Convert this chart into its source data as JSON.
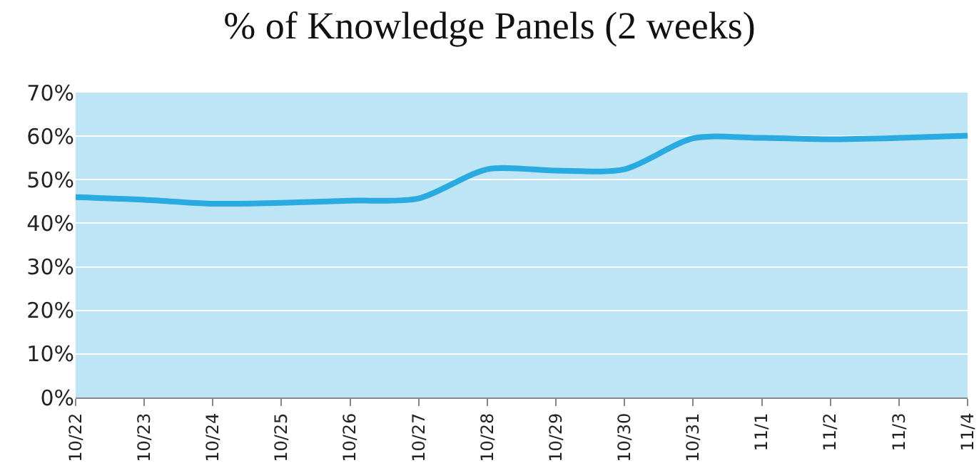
{
  "chart_data": {
    "type": "line",
    "title": "% of Knowledge Panels (2 weeks)",
    "categories": [
      "10/22",
      "10/23",
      "10/24",
      "10/25",
      "10/26",
      "10/27",
      "10/28",
      "10/29",
      "10/30",
      "10/31",
      "11/1",
      "11/2",
      "11/3",
      "11/4"
    ],
    "series": [
      {
        "color": "#29abe2",
        "values": [
          46,
          45.4,
          44.5,
          44.7,
          45.2,
          45.7,
          52.4,
          52.1,
          52.4,
          59.5,
          59.6,
          59.3,
          59.6,
          60.1
        ]
      }
    ],
    "ylim": [
      0,
      70
    ],
    "yticks": [
      {
        "value": 0,
        "label": "0%"
      },
      {
        "value": 10,
        "label": "10%"
      },
      {
        "value": 20,
        "label": "20%"
      },
      {
        "value": 30,
        "label": "30%"
      },
      {
        "value": 40,
        "label": "40%"
      },
      {
        "value": 50,
        "label": "50%"
      },
      {
        "value": 60,
        "label": "60%"
      },
      {
        "value": 70,
        "label": "70%"
      }
    ],
    "grid": "y",
    "legend": false,
    "marker": "none",
    "line_style": "solid"
  }
}
